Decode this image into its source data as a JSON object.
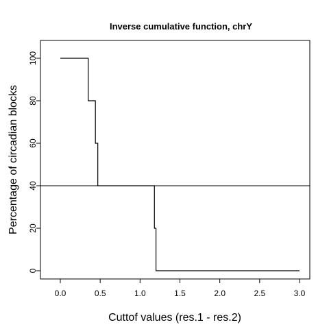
{
  "chart_data": {
    "type": "line",
    "title": "Inverse cumulative function, chrY",
    "xlabel": "Cuttof values (res.1 - res.2)",
    "ylabel": "Percentage of circadian blocks",
    "xlim": [
      0,
      3.0
    ],
    "ylim": [
      0,
      100
    ],
    "xticks": [
      "0.0",
      "0.5",
      "1.0",
      "1.5",
      "2.0",
      "2.5",
      "3.0"
    ],
    "yticks": [
      "0",
      "20",
      "40",
      "60",
      "80",
      "100"
    ],
    "series": [
      {
        "step": "post",
        "x": [
          0.0,
          0.12,
          0.35,
          0.38,
          0.44,
          0.47,
          1.18,
          1.2,
          3.0
        ],
        "values": [
          100,
          100,
          80,
          80,
          60,
          40,
          20,
          0,
          0
        ]
      }
    ],
    "hline": 40,
    "grid": false,
    "colors": {
      "line": "#000000",
      "frame": "#000000"
    }
  }
}
